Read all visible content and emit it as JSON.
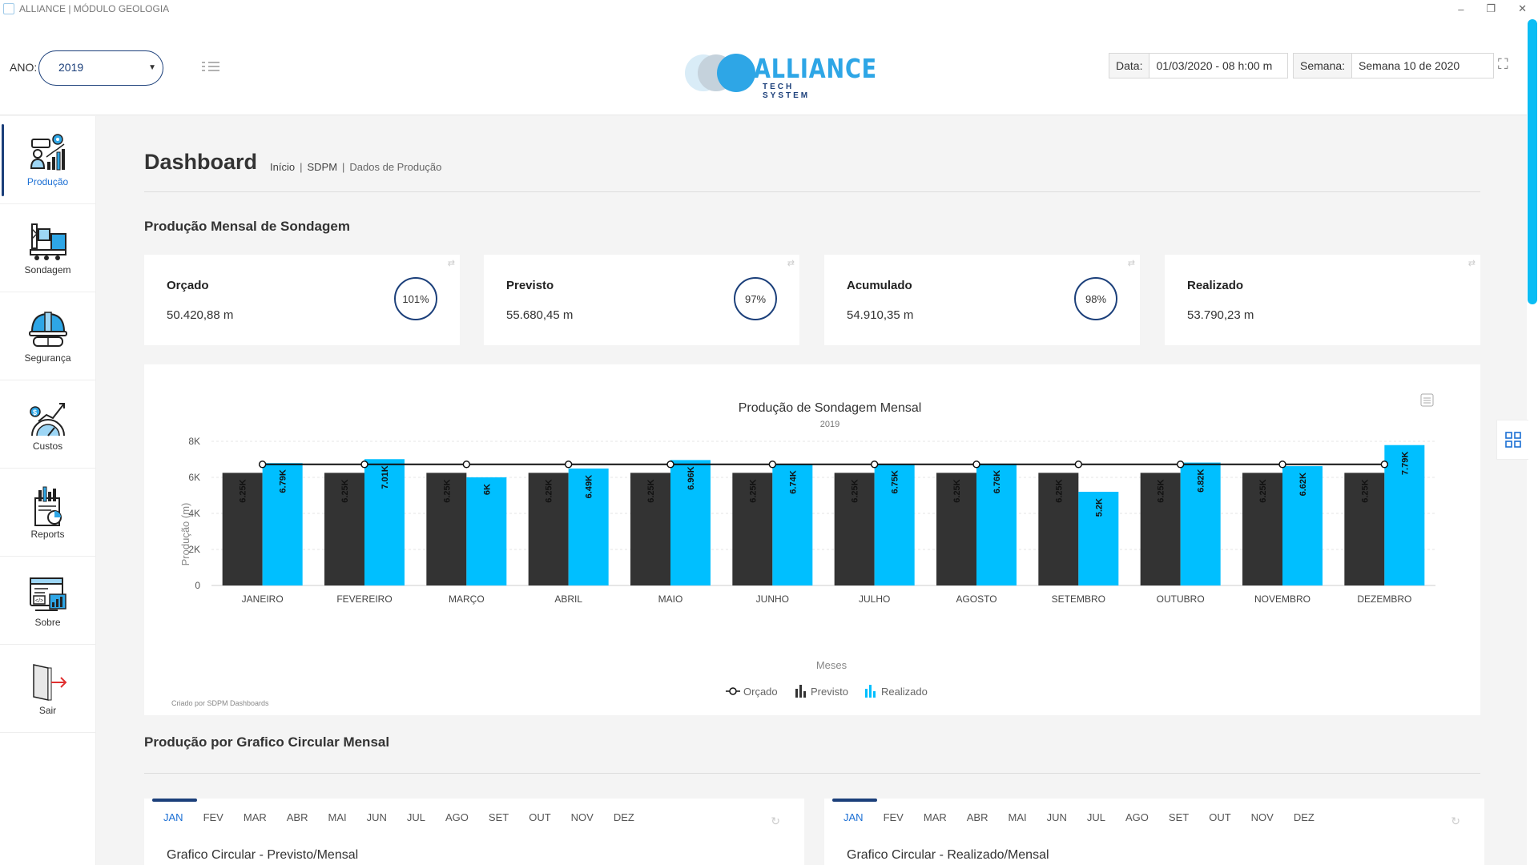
{
  "window": {
    "title": "ALLIANCE | MÓDULO GEOLOGIA"
  },
  "header": {
    "ano_label": "ANO:",
    "ano_value": "2019",
    "logo_word": "ALLIANCE",
    "logo_sub": "TECH SYSTEM",
    "data_label": "Data:",
    "data_value": "01/03/2020 - 08 h:00 m",
    "semana_label": "Semana:",
    "semana_value": "Semana 10 de 2020"
  },
  "sidebar": {
    "items": [
      {
        "label": "Produção",
        "icon": "production-icon",
        "active": true
      },
      {
        "label": "Sondagem",
        "icon": "drilling-rig-icon"
      },
      {
        "label": "Segurança",
        "icon": "safety-helmet-icon"
      },
      {
        "label": "Custos",
        "icon": "costs-chart-icon"
      },
      {
        "label": "Reports",
        "icon": "reports-icon"
      },
      {
        "label": "Sobre",
        "icon": "about-browser-icon"
      },
      {
        "label": "Sair",
        "icon": "exit-door-icon"
      }
    ]
  },
  "page": {
    "title": "Dashboard",
    "breadcrumb": [
      "Início",
      "SDPM",
      "Dados de Produção"
    ],
    "section1": "Produção Mensal de Sondagem",
    "section2": "Produção por Grafico Circular Mensal"
  },
  "cards": [
    {
      "name": "Orçado",
      "value": "50.420,88 m",
      "percent": "101%"
    },
    {
      "name": "Previsto",
      "value": "55.680,45 m",
      "percent": "97%"
    },
    {
      "name": "Acumulado",
      "value": "54.910,35 m",
      "percent": "98%"
    },
    {
      "name": "Realizado",
      "value": "53.790,23 m"
    }
  ],
  "chart_data": {
    "type": "bar",
    "title": "Produção de Sondagem Mensal",
    "subtitle": "2019",
    "xlabel": "Meses",
    "ylabel": "Produção (m)",
    "ylim": [
      0,
      8000
    ],
    "yticks": [
      "0",
      "2K",
      "4K",
      "6K",
      "8K"
    ],
    "categories": [
      "JANEIRO",
      "FEVEREIRO",
      "MARÇO",
      "ABRIL",
      "MAIO",
      "JUNHO",
      "JULHO",
      "AGOSTO",
      "SETEMBRO",
      "OUTUBRO",
      "NOVEMBRO",
      "DEZEMBRO"
    ],
    "series": [
      {
        "name": "Previsto",
        "kind": "bar",
        "color": "#333333",
        "values": [
          6250,
          6250,
          6250,
          6250,
          6250,
          6250,
          6250,
          6250,
          6250,
          6250,
          6250,
          6250
        ],
        "labels": [
          "6.25K",
          "6.25K",
          "6.25K",
          "6.25K",
          "6.25K",
          "6.25K",
          "6.25K",
          "6.25K",
          "6.25K",
          "6.25K",
          "6.25K",
          "6.25K"
        ]
      },
      {
        "name": "Realizado",
        "kind": "bar",
        "color": "#00bfff",
        "values": [
          6790,
          7010,
          6000,
          6490,
          6960,
          6740,
          6750,
          6760,
          5200,
          6820,
          6620,
          7790
        ],
        "labels": [
          "6.79K",
          "7.01K",
          "6K",
          "6.49K",
          "6.96K",
          "6.74K",
          "6.75K",
          "6.76K",
          "5.2K",
          "6.82K",
          "6.62K",
          "7.79K"
        ]
      },
      {
        "name": "Orçado",
        "kind": "line",
        "color": "#111111",
        "values": [
          6720,
          6720,
          6720,
          6720,
          6720,
          6720,
          6720,
          6720,
          6720,
          6720,
          6720,
          6720
        ]
      }
    ],
    "legend": [
      "Orçado",
      "Previsto",
      "Realizado"
    ],
    "legend_position": "bottom-center",
    "credit": "Criado por SDPM Dashboards",
    "grid": true
  },
  "pie_tabs": {
    "months": [
      "JAN",
      "FEV",
      "MAR",
      "ABR",
      "MAI",
      "JUN",
      "JUL",
      "AGO",
      "SET",
      "OUT",
      "NOV",
      "DEZ"
    ],
    "left_title": "Grafico Circular - Previsto/Mensal",
    "right_title": "Grafico Circular - Realizado/Mensal"
  }
}
